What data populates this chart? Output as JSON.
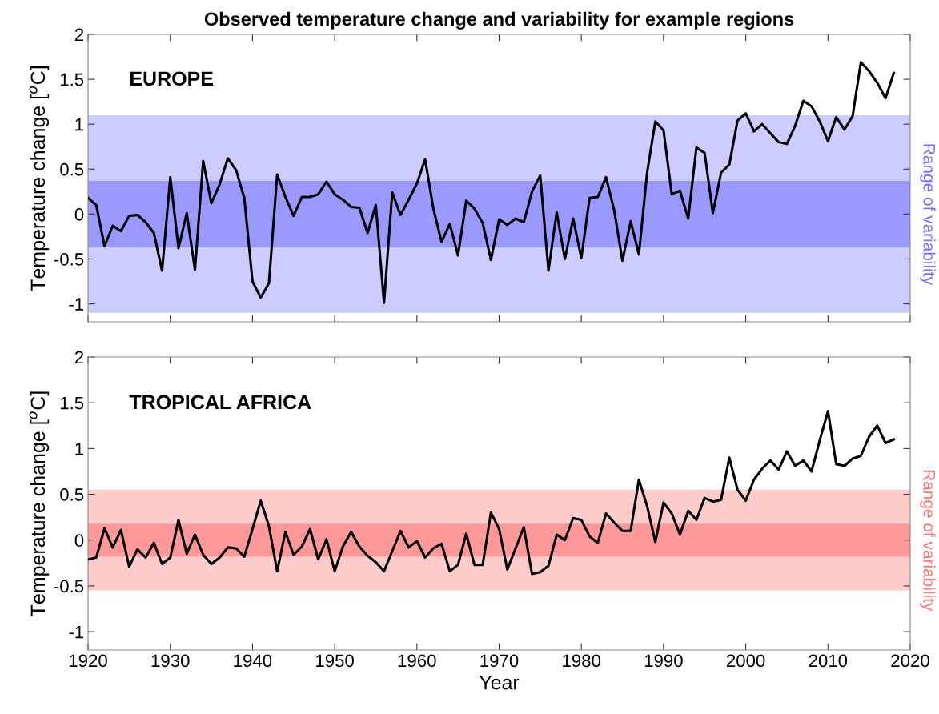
{
  "chart_data": [
    {
      "type": "line",
      "title": "Observed temperature change and variability for example regions",
      "ylabel": "Temperature change [$^{o}$C]",
      "annotations": [
        "EUROPE"
      ],
      "x": [
        1920,
        1921,
        1922,
        1923,
        1924,
        1925,
        1926,
        1927,
        1928,
        1929,
        1930,
        1931,
        1932,
        1933,
        1934,
        1935,
        1936,
        1937,
        1938,
        1939,
        1940,
        1941,
        1942,
        1943,
        1944,
        1945,
        1946,
        1947,
        1948,
        1949,
        1950,
        1951,
        1952,
        1953,
        1954,
        1955,
        1956,
        1957,
        1958,
        1959,
        1960,
        1961,
        1962,
        1963,
        1964,
        1965,
        1966,
        1967,
        1968,
        1969,
        1970,
        1971,
        1972,
        1973,
        1974,
        1975,
        1976,
        1977,
        1978,
        1979,
        1980,
        1981,
        1982,
        1983,
        1984,
        1985,
        1986,
        1987,
        1988,
        1989,
        1990,
        1991,
        1992,
        1993,
        1994,
        1995,
        1996,
        1997,
        1998,
        1999,
        2000,
        2001,
        2002,
        2003,
        2004,
        2005,
        2006,
        2007,
        2008,
        2009,
        2010,
        2011,
        2012,
        2013,
        2014,
        2015,
        2016,
        2017,
        2018
      ],
      "series": [
        {
          "color": "#000000",
          "values": [
            0.18,
            0.1,
            -0.36,
            -0.13,
            -0.19,
            -0.02,
            -0.01,
            -0.09,
            -0.21,
            -0.63,
            0.41,
            -0.38,
            0.01,
            -0.62,
            0.59,
            0.12,
            0.33,
            0.62,
            0.49,
            0.18,
            -0.75,
            -0.93,
            -0.77,
            0.44,
            0.19,
            -0.02,
            0.19,
            0.19,
            0.22,
            0.36,
            0.22,
            0.16,
            0.08,
            0.07,
            -0.21,
            0.1,
            -0.99,
            0.24,
            -0.01,
            0.16,
            0.34,
            0.61,
            0.06,
            -0.31,
            -0.11,
            -0.46,
            0.15,
            0.06,
            -0.1,
            -0.51,
            -0.06,
            -0.12,
            -0.05,
            -0.09,
            0.25,
            0.43,
            -0.63,
            0.02,
            -0.5,
            -0.05,
            -0.49,
            0.18,
            0.19,
            0.41,
            0.04,
            -0.52,
            -0.08,
            -0.45,
            0.46,
            1.03,
            0.93,
            0.22,
            0.26,
            -0.05,
            0.74,
            0.68,
            0.01,
            0.46,
            0.55,
            1.04,
            1.12,
            0.92,
            1.0,
            0.9,
            0.8,
            0.78,
            0.98,
            1.26,
            1.2,
            1.03,
            0.81,
            1.08,
            0.94,
            1.09,
            1.69,
            1.59,
            1.46,
            1.29,
            1.57
          ]
        }
      ],
      "bands": [
        {
          "axis": "y",
          "from": -1.1,
          "to": 1.1,
          "label": "Range of variability",
          "color": "#ccccff"
        },
        {
          "axis": "y",
          "from": -0.37,
          "to": 0.37,
          "color": "#9999ff"
        }
      ],
      "xlim": [
        1920,
        2020
      ],
      "xticks": [
        1920,
        1930,
        1940,
        1950,
        1960,
        1970,
        1980,
        1990,
        2000,
        2010,
        2020
      ],
      "ylim": [
        -1.2,
        2
      ],
      "yticks": [
        -1,
        -0.5,
        0,
        0.5,
        1,
        1.5,
        2
      ],
      "tick_labels": "y"
    },
    {
      "type": "line",
      "xlabel": "Year",
      "ylabel": "Temperature change [$^{o}$C]",
      "annotations": [
        "TROPICAL AFRICA"
      ],
      "x": [
        1920,
        1921,
        1922,
        1923,
        1924,
        1925,
        1926,
        1927,
        1928,
        1929,
        1930,
        1931,
        1932,
        1933,
        1934,
        1935,
        1936,
        1937,
        1938,
        1939,
        1940,
        1941,
        1942,
        1943,
        1944,
        1945,
        1946,
        1947,
        1948,
        1949,
        1950,
        1951,
        1952,
        1953,
        1954,
        1955,
        1956,
        1957,
        1958,
        1959,
        1960,
        1961,
        1962,
        1963,
        1964,
        1965,
        1966,
        1967,
        1968,
        1969,
        1970,
        1971,
        1972,
        1973,
        1974,
        1975,
        1976,
        1977,
        1978,
        1979,
        1980,
        1981,
        1982,
        1983,
        1984,
        1985,
        1986,
        1987,
        1988,
        1989,
        1990,
        1991,
        1992,
        1993,
        1994,
        1995,
        1996,
        1997,
        1998,
        1999,
        2000,
        2001,
        2002,
        2003,
        2004,
        2005,
        2006,
        2007,
        2008,
        2009,
        2010,
        2011,
        2012,
        2013,
        2014,
        2015,
        2016,
        2017,
        2018
      ],
      "series": [
        {
          "color": "#000000",
          "values": [
            -0.21,
            -0.19,
            0.13,
            -0.08,
            0.11,
            -0.29,
            -0.1,
            -0.19,
            -0.03,
            -0.26,
            -0.19,
            0.22,
            -0.15,
            0.06,
            -0.16,
            -0.26,
            -0.19,
            -0.08,
            -0.09,
            -0.18,
            0.12,
            0.43,
            0.15,
            -0.34,
            0.09,
            -0.16,
            -0.07,
            0.12,
            -0.21,
            0.01,
            -0.34,
            -0.07,
            0.09,
            -0.07,
            -0.17,
            -0.24,
            -0.34,
            -0.12,
            0.1,
            -0.08,
            -0.01,
            -0.19,
            -0.09,
            -0.04,
            -0.34,
            -0.27,
            0.07,
            -0.27,
            -0.27,
            0.3,
            0.12,
            -0.32,
            -0.09,
            0.14,
            -0.37,
            -0.35,
            -0.28,
            0.06,
            0.0,
            0.24,
            0.22,
            0.04,
            -0.03,
            0.29,
            0.19,
            0.1,
            0.1,
            0.66,
            0.37,
            -0.02,
            0.41,
            0.29,
            0.06,
            0.32,
            0.22,
            0.46,
            0.42,
            0.44,
            0.9,
            0.55,
            0.43,
            0.66,
            0.78,
            0.87,
            0.77,
            0.97,
            0.81,
            0.87,
            0.75,
            1.09,
            1.41,
            0.83,
            0.81,
            0.89,
            0.92,
            1.13,
            1.25,
            1.06,
            1.1
          ]
        }
      ],
      "bands": [
        {
          "axis": "y",
          "from": -0.55,
          "to": 0.55,
          "label": "Range of variability",
          "color": "#ffcccc"
        },
        {
          "axis": "y",
          "from": -0.18,
          "to": 0.18,
          "color": "#ff9999"
        }
      ],
      "xlim": [
        1920,
        2020
      ],
      "xticks": [
        1920,
        1930,
        1940,
        1950,
        1960,
        1970,
        1980,
        1990,
        2000,
        2010,
        2020
      ],
      "ylim": [
        -1.2,
        2
      ],
      "yticks": [
        -1,
        -0.5,
        0,
        0.5,
        1,
        1.5,
        2
      ]
    }
  ]
}
